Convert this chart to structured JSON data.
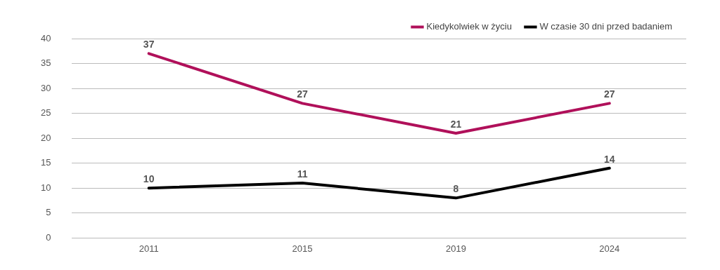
{
  "chart_data": {
    "type": "line",
    "categories": [
      "2011",
      "2015",
      "2019",
      "2024"
    ],
    "series": [
      {
        "name": "Kiedykolwiek w życiu",
        "color": "#b0105a",
        "values": [
          37,
          27,
          21,
          27
        ]
      },
      {
        "name": "W czasie 30 dni przed badaniem",
        "color": "#000000",
        "values": [
          10,
          11,
          8,
          14
        ]
      }
    ],
    "ylim": [
      0,
      40
    ],
    "yticks": [
      0,
      5,
      10,
      15,
      20,
      25,
      30,
      35,
      40
    ],
    "grid": "y",
    "legend": "top right",
    "data_labels": true,
    "marker": "none",
    "line_style": "solid"
  }
}
